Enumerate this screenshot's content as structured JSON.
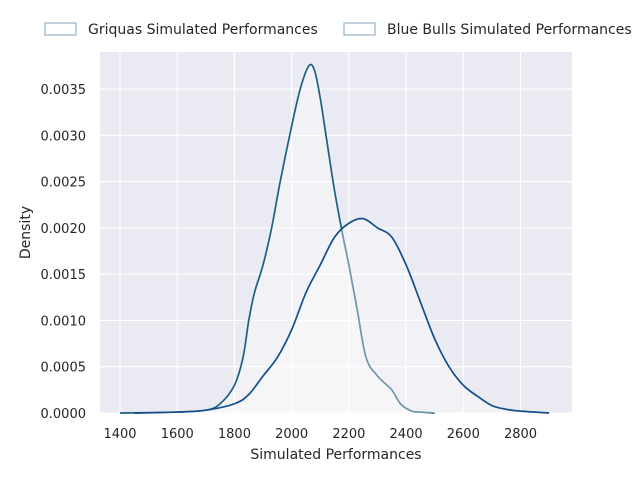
{
  "chart_data": {
    "type": "area",
    "title": "",
    "xlabel": "Simulated Performances",
    "ylabel": "Density",
    "xlim": [
      1330,
      2980
    ],
    "ylim": [
      0,
      0.0039
    ],
    "x_ticks": [
      1400,
      1600,
      1800,
      2000,
      2200,
      2400,
      2600,
      2800
    ],
    "y_ticks": [
      0.0,
      0.0005,
      0.001,
      0.0015,
      0.002,
      0.0025,
      0.003,
      0.0035
    ],
    "grid": true,
    "legend_position": "top",
    "series": [
      {
        "name": "Griquas Simulated Performances",
        "color": "#1f5f7f",
        "x": [
          1400,
          1600,
          1700,
          1750,
          1800,
          1830,
          1850,
          1870,
          1900,
          1930,
          1960,
          2000,
          2030,
          2060,
          2080,
          2100,
          2120,
          2150,
          2180,
          2200,
          2230,
          2260,
          2300,
          2350,
          2380,
          2420,
          2450,
          2500
        ],
        "y": [
          0.0,
          1e-05,
          3e-05,
          0.0001,
          0.0003,
          0.0006,
          0.001,
          0.0013,
          0.0016,
          0.002,
          0.0025,
          0.0031,
          0.0035,
          0.00375,
          0.0037,
          0.0034,
          0.003,
          0.0024,
          0.0019,
          0.0016,
          0.0011,
          0.0006,
          0.0004,
          0.00025,
          0.0001,
          2e-05,
          1e-05,
          0.0
        ]
      },
      {
        "name": "Blue Bulls Simulated Performances",
        "color": "#134d8b",
        "x": [
          1450,
          1600,
          1700,
          1800,
          1850,
          1900,
          1950,
          2000,
          2050,
          2100,
          2150,
          2200,
          2250,
          2300,
          2350,
          2400,
          2450,
          2500,
          2550,
          2600,
          2650,
          2700,
          2750,
          2800,
          2900
        ],
        "y": [
          0.0,
          1e-05,
          3e-05,
          0.0001,
          0.0002,
          0.0004,
          0.0006,
          0.0009,
          0.0013,
          0.0016,
          0.0019,
          0.00205,
          0.0021,
          0.002,
          0.0019,
          0.0016,
          0.0012,
          0.0008,
          0.0005,
          0.0003,
          0.00018,
          8e-05,
          4e-05,
          2e-05,
          0.0
        ]
      }
    ]
  }
}
